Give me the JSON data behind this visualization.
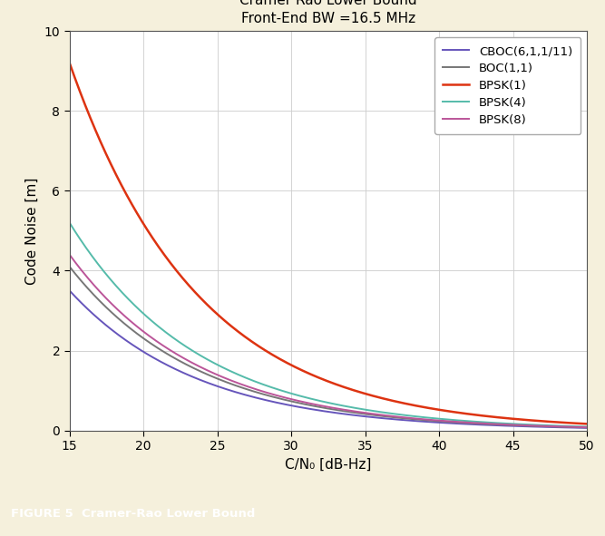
{
  "title_line1": "Cramer Rao Lower Bound",
  "title_line2": "Front-End BW =16.5 MHz",
  "xlabel": "C/N₀ [dB-Hz]",
  "ylabel": "Code Noise [m]",
  "xlim": [
    15,
    50
  ],
  "ylim": [
    0,
    10
  ],
  "xticks": [
    15,
    20,
    25,
    30,
    35,
    40,
    45,
    50
  ],
  "yticks": [
    0,
    2,
    4,
    6,
    8,
    10
  ],
  "figure_caption": "FIGURE 5  Cramer-Rao Lower Bound",
  "background_color": "#f5f0dc",
  "plot_bg_color": "#ffffff",
  "caption_bg_color": "#8b1a1a",
  "caption_text_color": "#ffffff",
  "series": [
    {
      "label": "CBOC(6,1,1/11)",
      "color": "#6655bb",
      "linewidth": 1.4,
      "scale": 3.5
    },
    {
      "label": "BOC(1,1)",
      "color": "#777777",
      "linewidth": 1.4,
      "scale": 4.1
    },
    {
      "label": "BPSK(1)",
      "color": "#dd3311",
      "linewidth": 1.8,
      "scale": 9.2
    },
    {
      "label": "BPSK(4)",
      "color": "#55bbaa",
      "linewidth": 1.4,
      "scale": 5.2
    },
    {
      "label": "BPSK(8)",
      "color": "#bb5599",
      "linewidth": 1.4,
      "scale": 4.4
    }
  ],
  "ref_cn0": 15
}
